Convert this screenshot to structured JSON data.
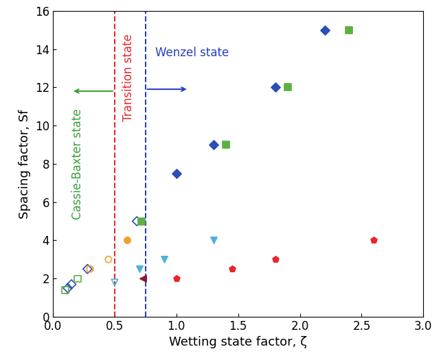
{
  "chart_data": {
    "type": "scatter",
    "x_label": "Wetting state factor, ζ",
    "y_label": "Spacing factor, Sf",
    "xlim": [
      0.0,
      3.0
    ],
    "xticks": [
      0.0,
      0.5,
      1.0,
      1.5,
      2.0,
      2.5,
      3.0
    ],
    "ylim": [
      0,
      16
    ],
    "yticks": [
      0,
      2,
      4,
      6,
      8,
      10,
      12,
      14,
      16
    ],
    "grid": false,
    "vlines": [
      {
        "x": 0.5,
        "color": "#e8262b",
        "line_style": "dashed"
      },
      {
        "x": 0.75,
        "color": "#2a3fc0",
        "line_style": "dashed"
      }
    ],
    "annotations": [
      {
        "text": "Cassie-Baxter state",
        "color": "#3aa13a"
      },
      {
        "text": "Transition state",
        "color": "#e8262b"
      },
      {
        "text": "Wenzel state",
        "color": "#2a3fc0"
      }
    ],
    "series": [
      {
        "color": "#2a4fb5",
        "marker": "diamond",
        "x": [
          1.0,
          1.3,
          1.8,
          2.2
        ],
        "values": [
          7.5,
          9,
          12,
          15
        ]
      },
      {
        "color": "#2a4fb5",
        "marker": "diamond_open",
        "x": [
          0.12,
          0.15,
          0.28,
          0.68
        ],
        "values": [
          1.5,
          1.7,
          2.5,
          5
        ]
      },
      {
        "color": "#5cb040",
        "marker": "square",
        "x": [
          0.72,
          1.4,
          1.9,
          2.4
        ],
        "values": [
          5,
          9,
          12,
          15
        ]
      },
      {
        "color": "#5cb040",
        "marker": "square_open",
        "x": [
          0.1,
          0.2
        ],
        "values": [
          1.4,
          2.0
        ]
      },
      {
        "color": "#e8262b",
        "marker": "pentagon",
        "x": [
          1.0,
          1.45,
          1.8,
          2.6
        ],
        "values": [
          2,
          2.5,
          3,
          4
        ]
      },
      {
        "color": "#4fb3d9",
        "marker": "triangle_down",
        "x": [
          0.7,
          0.9,
          1.3
        ],
        "values": [
          2.5,
          3,
          4
        ]
      },
      {
        "color": "#4fb3d9",
        "marker": "triangle_down_open",
        "x": [
          0.5
        ],
        "values": [
          1.8
        ]
      },
      {
        "color": "#f0a030",
        "marker": "circle",
        "x": [
          0.6
        ],
        "values": [
          4
        ]
      },
      {
        "color": "#f0a030",
        "marker": "circle_open",
        "x": [
          0.3,
          0.45
        ],
        "values": [
          2.5,
          3
        ]
      },
      {
        "color": "#8b1a2b",
        "marker": "triangle_left",
        "x": [
          0.73
        ],
        "values": [
          2
        ]
      }
    ]
  }
}
